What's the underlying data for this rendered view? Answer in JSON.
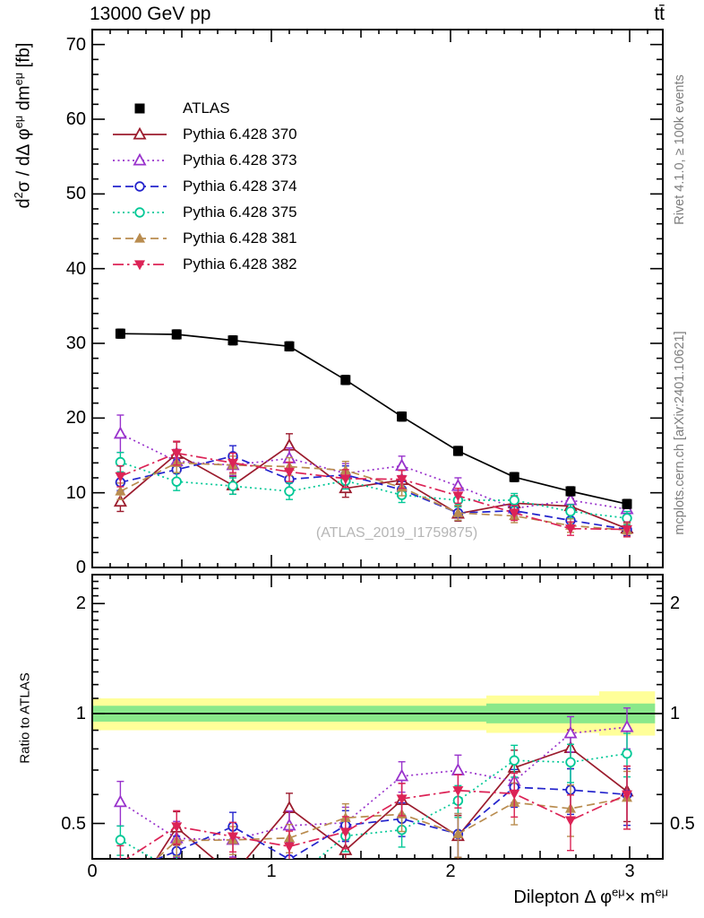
{
  "header": {
    "left": "13000 GeV pp",
    "right": "tt̄"
  },
  "notes": {
    "right_top": "Rivet 4.1.0, ≥ 100k events",
    "right_bottom": "mcplots.cern.ch [arXiv:2401.10621]"
  },
  "labels": {
    "ylabel_parts": [
      {
        "t": "d"
      },
      {
        "t": "2",
        "sup": true
      },
      {
        "t": "σ / dΔ φ"
      },
      {
        "t": "eμ",
        "sup": true
      },
      {
        "t": " dm"
      },
      {
        "t": "eμ",
        "sup": true
      },
      {
        "t": " [fb]"
      }
    ],
    "ratio_ylabel": "Ratio to ATLAS",
    "xlabel_parts": [
      {
        "t": "Dilepton Δ φ"
      },
      {
        "t": "eμ",
        "sup": true
      },
      {
        "t": "× m"
      },
      {
        "t": "eμ",
        "sup": true
      }
    ],
    "watermark": "(ATLAS_2019_I1759875)"
  },
  "chart_data": {
    "type": "line",
    "xlim": [
      0,
      3.185
    ],
    "x": [
      0.157,
      0.471,
      0.785,
      1.1,
      1.414,
      1.728,
      2.042,
      2.356,
      2.67,
      2.985
    ],
    "xticks": [
      0,
      1,
      2,
      3
    ],
    "main": {
      "ylim": [
        0,
        72
      ],
      "yticks": [
        0,
        10,
        20,
        30,
        40,
        50,
        60,
        70
      ],
      "grid": false
    },
    "ratio": {
      "scale": "log",
      "ylim": [
        0.4,
        2.4
      ],
      "yticks": [
        0.5,
        1,
        2
      ],
      "bands": [
        {
          "color": "#ffff99",
          "segments": [
            [
              0,
              2.2,
              0.9,
              1.1
            ],
            [
              2.2,
              2.83,
              0.885,
              1.12
            ],
            [
              2.83,
              3.1416,
              0.87,
              1.15
            ]
          ]
        },
        {
          "color": "#8ae88a",
          "segments": [
            [
              0,
              2.2,
              0.95,
              1.05
            ],
            [
              2.2,
              3.1416,
              0.94,
              1.065
            ]
          ]
        }
      ],
      "reference_line": 1
    },
    "atlas": {
      "label": "ATLAS",
      "color": "#000000",
      "marker": "square",
      "values": [
        31.3,
        31.2,
        30.4,
        29.6,
        25.1,
        20.2,
        15.6,
        12.1,
        10.2,
        8.5
      ],
      "errors": [
        0.6,
        0.6,
        0.6,
        0.6,
        0.6,
        0.6,
        0.6,
        0.6,
        0.6,
        0.6
      ]
    },
    "series": [
      {
        "label": "Pythia 6.428 370",
        "color": "#9b1b2d",
        "dash": "solid",
        "marker": "triangle-open",
        "values": [
          8.8,
          15.2,
          11.0,
          16.3,
          10.6,
          11.7,
          7.2,
          8.6,
          8.2,
          5.2
        ],
        "errors": [
          1.3,
          1.6,
          1.2,
          1.6,
          1.2,
          1.3,
          1.0,
          1.0,
          1.0,
          0.9
        ]
      },
      {
        "label": "Pythia 6.428 373",
        "color": "#9933cc",
        "dash": "dotted",
        "marker": "triangle-open",
        "values": [
          17.9,
          14.2,
          13.7,
          14.6,
          12.6,
          13.6,
          10.9,
          7.9,
          9.0,
          7.8
        ],
        "errors": [
          2.5,
          1.6,
          1.4,
          1.4,
          1.3,
          1.3,
          1.1,
          1.0,
          1.0,
          1.0
        ]
      },
      {
        "label": "Pythia 6.428 374",
        "color": "#2323cc",
        "dash": "dashed",
        "marker": "circle-open",
        "values": [
          11.4,
          13.1,
          14.9,
          11.8,
          12.4,
          10.4,
          7.3,
          7.6,
          6.3,
          5.1
        ],
        "errors": [
          1.1,
          1.3,
          1.4,
          1.3,
          1.2,
          1.1,
          1.0,
          0.9,
          0.9,
          0.9
        ]
      },
      {
        "label": "Pythia 6.428 375",
        "color": "#00c896",
        "dash": "dotted",
        "marker": "circle-open",
        "values": [
          14.1,
          11.5,
          10.9,
          10.2,
          11.6,
          9.7,
          9.0,
          9.0,
          7.5,
          6.6
        ],
        "errors": [
          1.3,
          1.2,
          1.1,
          1.1,
          1.1,
          1.0,
          0.9,
          0.9,
          0.9,
          0.9
        ]
      },
      {
        "label": "Pythia 6.428 381",
        "color": "#b98c4f",
        "dash": "dashed",
        "marker": "triangle-filled",
        "values": [
          10.2,
          14.0,
          13.7,
          13.5,
          13.0,
          10.7,
          7.3,
          6.9,
          5.6,
          5.0
        ],
        "errors": [
          1.1,
          1.3,
          1.2,
          1.2,
          1.2,
          1.1,
          1.0,
          0.9,
          0.9,
          0.9
        ]
      },
      {
        "label": "Pythia 6.428 382",
        "color": "#dc2356",
        "dash": "dashdot",
        "marker": "triangle-down-filled",
        "values": [
          12.2,
          15.3,
          14.0,
          12.8,
          11.9,
          11.8,
          9.6,
          7.3,
          5.2,
          5.1
        ],
        "errors": [
          1.4,
          1.6,
          1.3,
          1.3,
          1.2,
          1.2,
          1.0,
          1.0,
          0.9,
          1.0
        ]
      }
    ]
  }
}
